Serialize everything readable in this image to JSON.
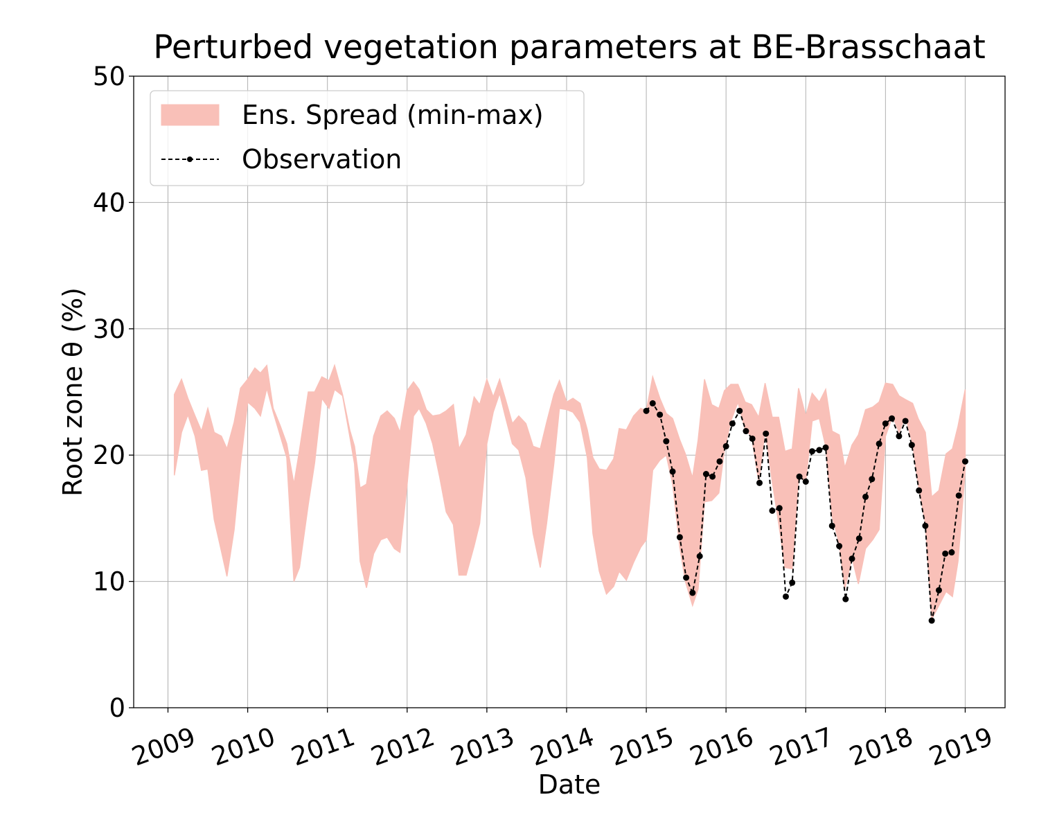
{
  "chart_data": {
    "type": "line",
    "title": "Perturbed vegetation parameters at BE-Brasschaat",
    "x_label": "Date",
    "y_label": "Root zone θ  (%)",
    "xlim": [
      2008.57,
      2019.5
    ],
    "xticks": [
      2009,
      2010,
      2011,
      2012,
      2013,
      2014,
      2015,
      2016,
      2017,
      2018,
      2019
    ],
    "ylim": [
      0,
      50
    ],
    "yticks": [
      0,
      10,
      20,
      30,
      40,
      50
    ],
    "grid": true,
    "legend": "upper left",
    "series": [
      {
        "name": "Ens. Spread (min-max)",
        "type": "fill_between",
        "color": "#f9c0b8",
        "x": [
          2009.08,
          2009.17,
          2009.25,
          2009.34,
          2009.42,
          2009.5,
          2009.58,
          2009.67,
          2009.74,
          2009.83,
          2009.91,
          2010.0,
          2010.09,
          2010.16,
          2010.24,
          2010.32,
          2010.41,
          2010.49,
          2010.58,
          2010.65,
          2010.76,
          2010.84,
          2010.93,
          2011.02,
          2011.09,
          2011.19,
          2011.28,
          2011.34,
          2011.41,
          2011.49,
          2011.58,
          2011.67,
          2011.75,
          2011.84,
          2011.91,
          2012.0,
          2012.08,
          2012.15,
          2012.24,
          2012.32,
          2012.41,
          2012.49,
          2012.58,
          2012.65,
          2012.74,
          2012.84,
          2012.91,
          2013.0,
          2013.08,
          2013.16,
          2013.23,
          2013.32,
          2013.4,
          2013.49,
          2013.58,
          2013.67,
          2013.75,
          2013.84,
          2013.91,
          2014.0,
          2014.08,
          2014.17,
          2014.26,
          2014.33,
          2014.41,
          2014.5,
          2014.59,
          2014.66,
          2014.75,
          2014.84,
          2014.93,
          2015.0,
          2015.08,
          2015.17,
          2015.25,
          2015.33,
          2015.42,
          2015.49,
          2015.58,
          2015.65,
          2015.73,
          2015.82,
          2015.91,
          2015.98,
          2016.06,
          2016.15,
          2016.24,
          2016.32,
          2016.41,
          2016.49,
          2016.58,
          2016.66,
          2016.74,
          2016.83,
          2016.91,
          2017.0,
          2017.08,
          2017.17,
          2017.25,
          2017.33,
          2017.42,
          2017.49,
          2017.58,
          2017.66,
          2017.75,
          2017.84,
          2017.92,
          2018.0,
          2018.09,
          2018.17,
          2018.25,
          2018.34,
          2018.41,
          2018.5,
          2018.58,
          2018.67,
          2018.76,
          2018.84,
          2018.91,
          2019.0
        ],
        "lower": [
          18.4,
          21.8,
          23.2,
          21.5,
          18.8,
          18.9,
          14.9,
          12.4,
          10.4,
          14.1,
          19.3,
          24.2,
          23.7,
          23.1,
          25.3,
          23.4,
          21.5,
          19.8,
          10.0,
          11.1,
          16.1,
          19.4,
          24.5,
          23.7,
          25.2,
          24.7,
          21.5,
          19.3,
          11.6,
          9.5,
          12.2,
          13.3,
          13.5,
          12.6,
          12.3,
          17.7,
          23.1,
          23.7,
          22.5,
          20.9,
          18.2,
          15.5,
          14.5,
          10.5,
          10.5,
          12.8,
          14.6,
          20.9,
          23.4,
          24.9,
          23.1,
          20.9,
          20.4,
          18.2,
          13.8,
          11.1,
          14.6,
          19.3,
          23.7,
          23.6,
          23.4,
          22.6,
          19.8,
          13.8,
          10.8,
          9.0,
          9.6,
          10.8,
          10.1,
          11.5,
          12.7,
          13.3,
          18.8,
          19.6,
          20.0,
          17.7,
          12.7,
          10.0,
          8.1,
          9.4,
          16.3,
          16.4,
          17.0,
          20.4,
          22.7,
          24.2,
          22.0,
          21.5,
          17.9,
          22.0,
          17.9,
          14.6,
          11.1,
          11.0,
          18.3,
          17.9,
          22.7,
          22.9,
          20.7,
          15.2,
          13.0,
          9.4,
          11.9,
          9.8,
          12.6,
          13.3,
          14.1,
          21.5,
          23.1,
          21.8,
          23.1,
          20.9,
          17.7,
          14.6,
          7.0,
          8.1,
          9.2,
          8.8,
          11.6,
          18.8
        ],
        "upper": [
          24.8,
          26.0,
          24.5,
          23.1,
          21.9,
          23.7,
          21.8,
          21.5,
          20.5,
          22.6,
          25.3,
          26.0,
          26.9,
          26.5,
          27.1,
          23.7,
          22.3,
          20.9,
          17.7,
          20.4,
          25.0,
          25.0,
          26.2,
          25.9,
          27.1,
          24.8,
          22.0,
          20.7,
          17.4,
          17.7,
          21.5,
          23.1,
          23.5,
          22.9,
          21.8,
          25.1,
          25.8,
          25.2,
          23.6,
          23.1,
          23.2,
          23.5,
          24.0,
          20.5,
          21.6,
          24.6,
          24.0,
          26.0,
          24.6,
          26.0,
          24.5,
          22.5,
          23.1,
          22.5,
          20.7,
          20.5,
          22.6,
          24.8,
          25.9,
          24.2,
          24.5,
          24.1,
          22.0,
          19.8,
          18.9,
          18.8,
          19.7,
          22.1,
          22.0,
          23.1,
          23.7,
          23.5,
          26.2,
          24.5,
          23.3,
          22.9,
          21.2,
          20.1,
          18.2,
          21.2,
          26.0,
          24.0,
          23.7,
          25.1,
          25.6,
          25.6,
          24.2,
          24.0,
          23.0,
          25.7,
          23.0,
          23.0,
          20.3,
          20.5,
          25.3,
          23.1,
          24.9,
          24.2,
          25.2,
          21.9,
          21.6,
          19.0,
          20.8,
          21.6,
          23.6,
          23.8,
          24.2,
          25.7,
          25.6,
          24.7,
          24.4,
          24.1,
          22.9,
          21.8,
          16.7,
          17.2,
          20.1,
          20.5,
          22.3,
          25.2
        ]
      },
      {
        "name": "Observation",
        "type": "line",
        "color": "#000000",
        "x": [
          2015.0,
          2015.08,
          2015.17,
          2015.25,
          2015.33,
          2015.42,
          2015.5,
          2015.58,
          2015.67,
          2015.75,
          2015.83,
          2015.92,
          2016.0,
          2016.08,
          2016.17,
          2016.25,
          2016.33,
          2016.42,
          2016.5,
          2016.58,
          2016.67,
          2016.75,
          2016.83,
          2016.92,
          2017.0,
          2017.08,
          2017.17,
          2017.25,
          2017.33,
          2017.42,
          2017.5,
          2017.58,
          2017.67,
          2017.75,
          2017.83,
          2017.92,
          2018.0,
          2018.08,
          2018.17,
          2018.25,
          2018.33,
          2018.42,
          2018.5,
          2018.58,
          2018.67,
          2018.75,
          2018.83,
          2018.92,
          2019.0
        ],
        "values": [
          23.5,
          24.1,
          23.2,
          21.1,
          18.7,
          13.5,
          10.3,
          9.1,
          12.0,
          18.5,
          18.3,
          19.5,
          20.7,
          22.5,
          23.5,
          21.9,
          21.3,
          17.8,
          21.7,
          15.6,
          15.8,
          8.8,
          9.9,
          18.3,
          17.9,
          20.3,
          20.4,
          20.6,
          14.4,
          12.8,
          8.6,
          11.8,
          13.4,
          16.7,
          18.1,
          20.9,
          22.5,
          22.9,
          21.5,
          22.7,
          20.8,
          17.2,
          14.4,
          6.9,
          9.3,
          12.2,
          12.3,
          16.8,
          19.5
        ]
      }
    ]
  }
}
